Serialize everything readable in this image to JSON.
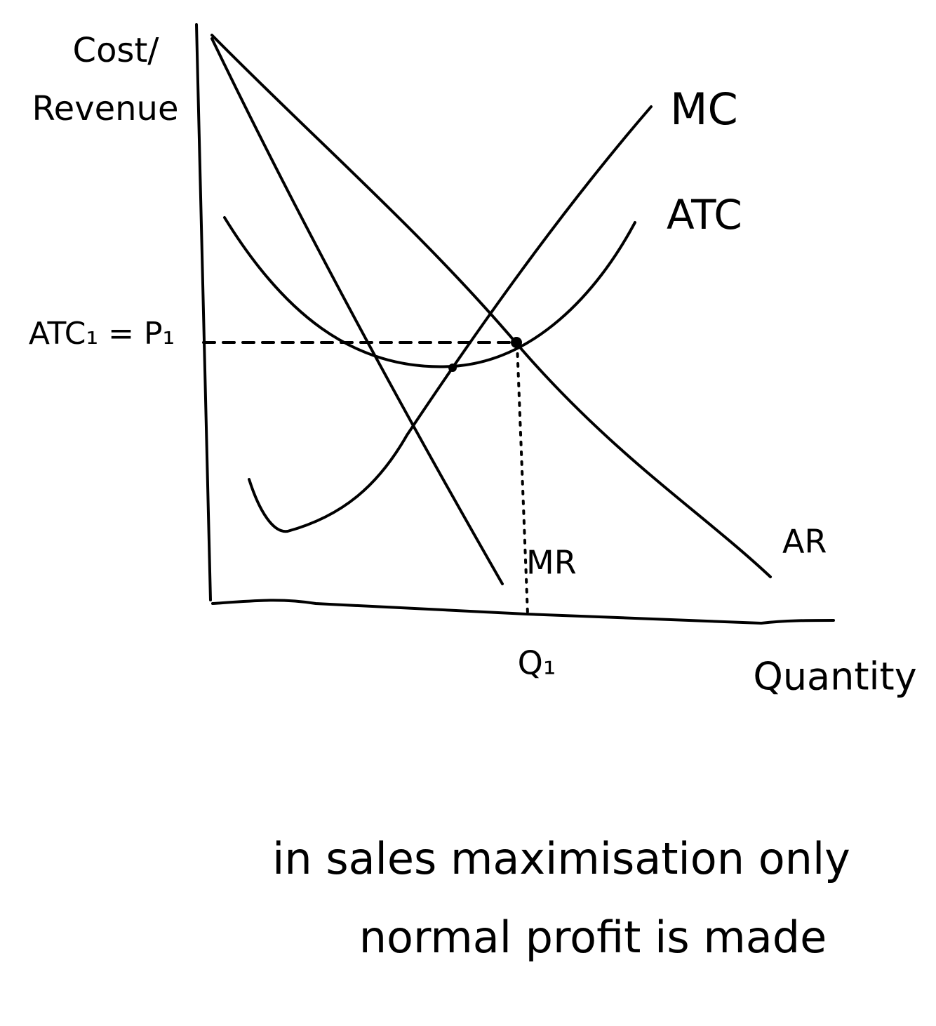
{
  "axes": {
    "y_label": [
      "Cost/",
      "Revenue"
    ],
    "x_label": "Quantity"
  },
  "curves": [
    {
      "label": "MC"
    },
    {
      "label": "ATC"
    },
    {
      "label": "AR"
    },
    {
      "label": "MR"
    }
  ],
  "markers": {
    "price": "ATC₁ = P₁",
    "quantity": "Q₁"
  },
  "note": [
    "in sales maximisation only",
    "normal profit is made"
  ]
}
